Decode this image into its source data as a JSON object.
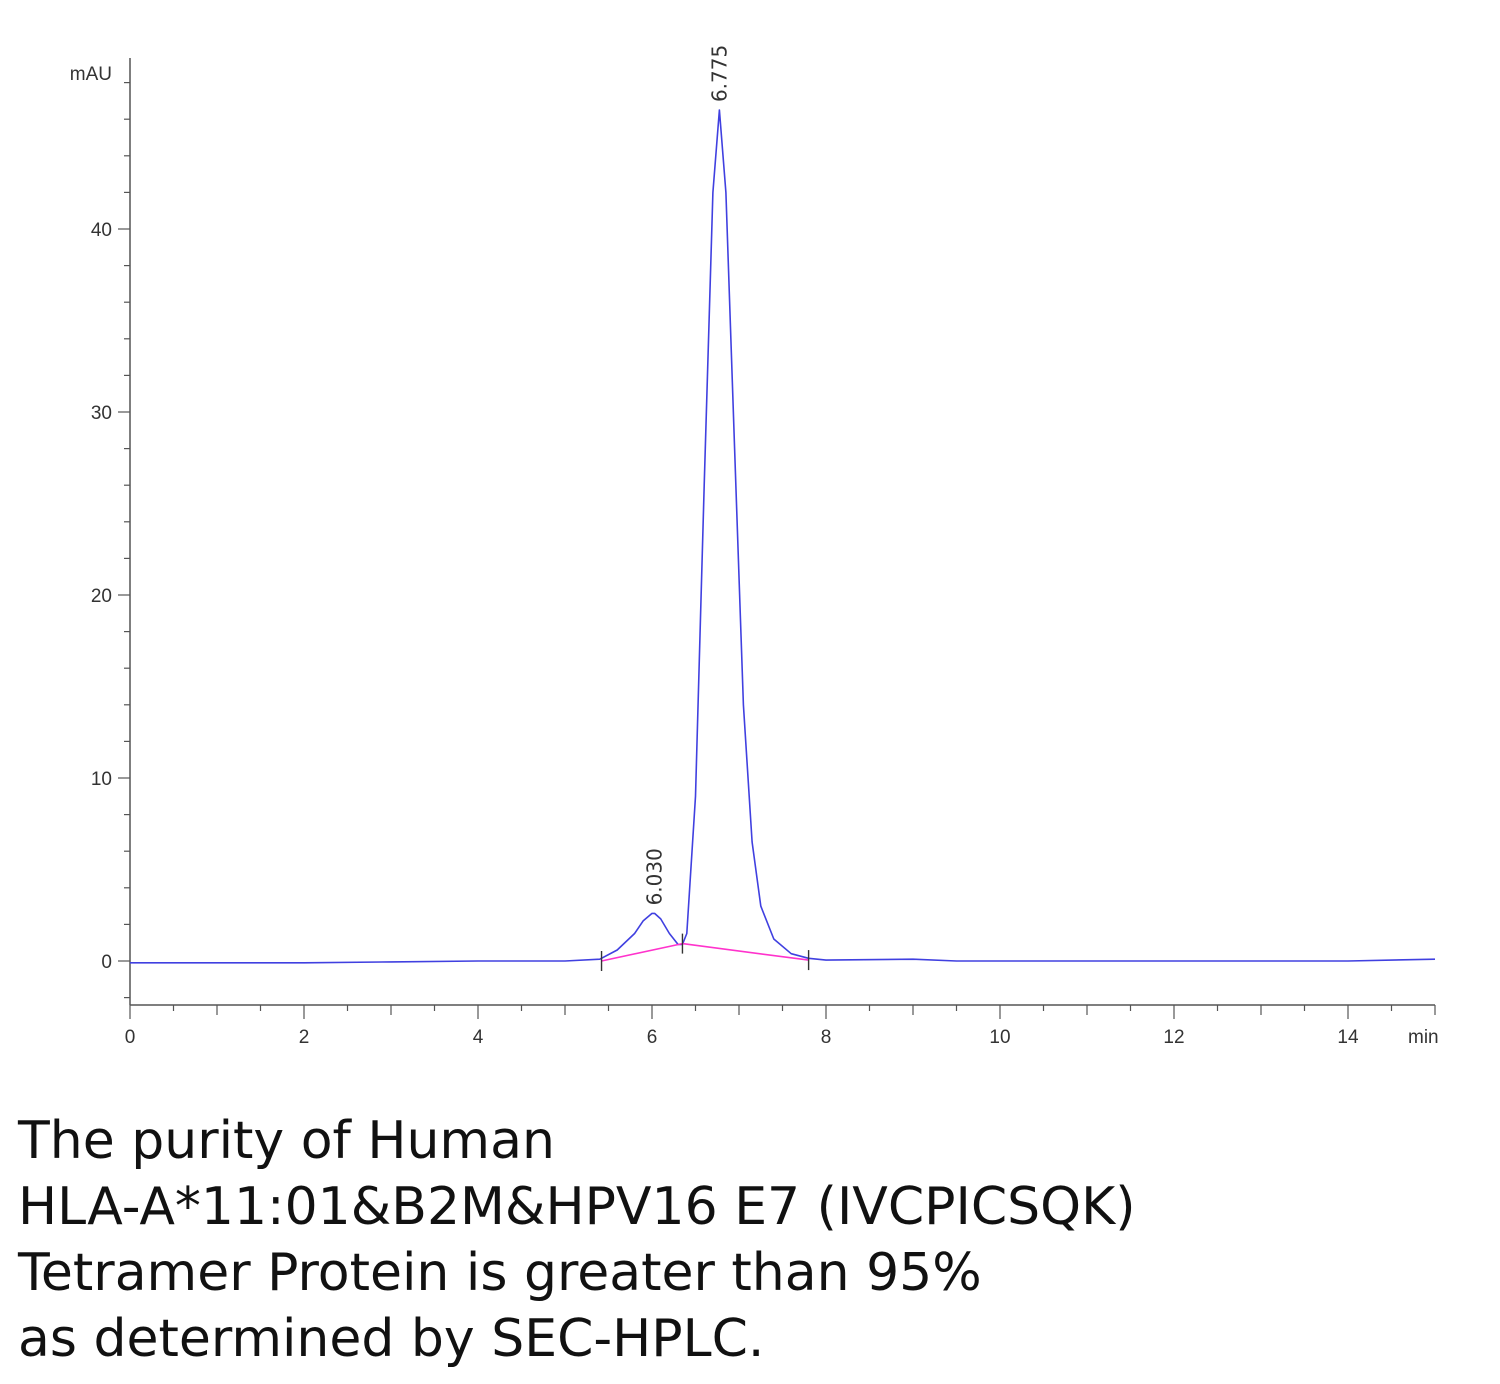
{
  "chart_data": {
    "type": "line",
    "xlabel": "min",
    "ylabel": "mAU",
    "xlim": [
      0,
      15
    ],
    "ylim": [
      -2.5,
      49
    ],
    "x_ticks": [
      0,
      2,
      4,
      6,
      8,
      10,
      12,
      14
    ],
    "y_ticks": [
      0,
      10,
      20,
      30,
      40
    ],
    "series": [
      {
        "color": "#4040e0",
        "x": [
          0,
          1,
          2,
          3,
          4,
          5,
          5.4,
          5.6,
          5.8,
          5.9,
          6.0,
          6.03,
          6.1,
          6.2,
          6.3,
          6.35,
          6.4,
          6.5,
          6.6,
          6.7,
          6.775,
          6.85,
          6.95,
          7.05,
          7.15,
          7.25,
          7.4,
          7.6,
          7.8,
          8.0,
          9.0,
          9.5,
          10,
          12,
          14,
          15
        ],
        "y": [
          -0.1,
          -0.1,
          -0.1,
          -0.05,
          0,
          0,
          0.1,
          0.6,
          1.5,
          2.2,
          2.6,
          2.6,
          2.3,
          1.5,
          0.9,
          0.9,
          1.5,
          9.0,
          26.0,
          42.0,
          46.5,
          42.0,
          28.0,
          14.0,
          6.5,
          3.0,
          1.2,
          0.4,
          0.15,
          0.05,
          0.1,
          0,
          0,
          0,
          0,
          0.1
        ]
      },
      {
        "color": "#ff33cc",
        "x": [
          5.42,
          6.35,
          7.8
        ],
        "y": [
          0.0,
          0.95,
          0.05
        ]
      }
    ],
    "peak_labels": [
      {
        "x": 6.03,
        "y": 2.6,
        "label": "6.030"
      },
      {
        "x": 6.775,
        "y": 46.5,
        "label": "6.775"
      }
    ]
  },
  "caption": [
    "The purity of Human",
    "HLA-A*11:01&B2M&HPV16 E7 (IVCPICSQK)",
    "Tetramer Protein is greater than 95%",
    "as determined by SEC-HPLC."
  ]
}
